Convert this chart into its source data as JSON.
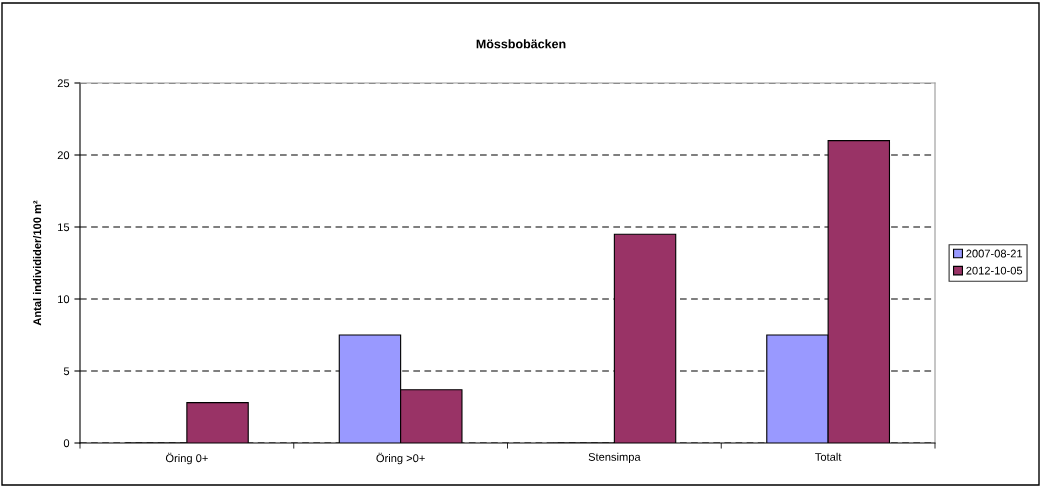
{
  "chart_data": {
    "type": "bar",
    "title": "Mössbobäcken",
    "ylabel": "Antal individider/100 m²",
    "categories": [
      "Öring 0+",
      "Öring >0+",
      "Stensimpa",
      "Totalt"
    ],
    "series": [
      {
        "name": "2007-08-21",
        "color": "#9999ff",
        "values": [
          0,
          7.5,
          0,
          7.5
        ]
      },
      {
        "name": "2012-10-05",
        "color": "#993366",
        "values": [
          2.8,
          3.7,
          14.5,
          21.0
        ]
      }
    ],
    "ylim": [
      0,
      25
    ],
    "yticks": [
      0,
      5,
      10,
      15,
      20,
      25
    ],
    "grid": "y",
    "legend": "right"
  }
}
